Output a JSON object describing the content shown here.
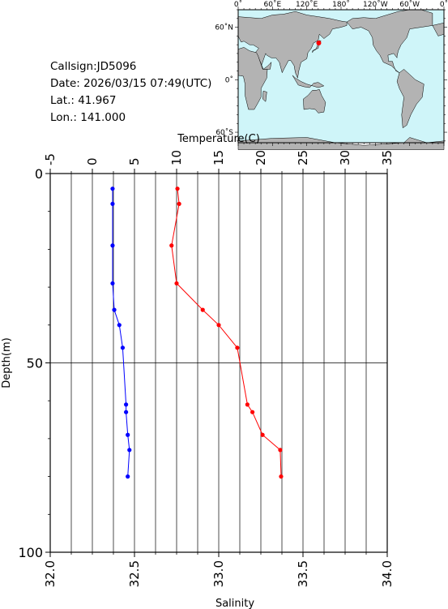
{
  "header": {
    "callsign": "Callsign:JD5096",
    "date": "Date:  2026/03/15 07:49(UTC)",
    "lat": "Lat.:  41.967",
    "lon": "Lon.:  141.000"
  },
  "map": {
    "top_labels": [
      "0˚",
      "60˚E",
      "120˚E",
      "180˚",
      "120˚W",
      "60˚W",
      "0˚"
    ],
    "left_labels": [
      "60˚N",
      "0˚",
      "60˚S"
    ],
    "ocean_color": "#cff5f9",
    "land_color": "#b3b3b3",
    "marker_color": "#ff0000",
    "station": {
      "lat": 41.967,
      "lon": 141.0
    }
  },
  "chart_data": {
    "type": "line",
    "ylabel": "Depth(m)",
    "y_axis_top": {
      "label": "Temperature(C)",
      "range": [
        -5,
        35
      ],
      "ticks": [
        "-5",
        "0",
        "5",
        "10",
        "15",
        "20",
        "25",
        "30",
        "35"
      ]
    },
    "x_axis_bottom": {
      "label": "Salinity",
      "range": [
        32.0,
        34.0
      ],
      "ticks": [
        "32.0",
        "32.5",
        "33.0",
        "33.5",
        "34.0"
      ]
    },
    "depth_axis": {
      "range": [
        0,
        100
      ],
      "ticks": [
        "0",
        "50",
        "100"
      ],
      "inverted": true
    },
    "grid": true,
    "series": [
      {
        "key": "temperature",
        "axis": "top",
        "color": "#ff0000",
        "points": [
          {
            "value": 10.1,
            "depth": 4
          },
          {
            "value": 10.3,
            "depth": 8
          },
          {
            "value": 9.4,
            "depth": 19
          },
          {
            "value": 10.0,
            "depth": 29
          },
          {
            "value": 13.1,
            "depth": 36
          },
          {
            "value": 15.0,
            "depth": 40
          },
          {
            "value": 17.2,
            "depth": 46
          },
          {
            "value": 18.4,
            "depth": 61
          },
          {
            "value": 19.0,
            "depth": 63
          },
          {
            "value": 20.2,
            "depth": 69
          },
          {
            "value": 22.3,
            "depth": 73
          },
          {
            "value": 22.4,
            "depth": 80
          }
        ]
      },
      {
        "key": "salinity",
        "axis": "bottom",
        "color": "#0000ff",
        "points": [
          {
            "value": 32.37,
            "depth": 4
          },
          {
            "value": 32.37,
            "depth": 8
          },
          {
            "value": 32.37,
            "depth": 19
          },
          {
            "value": 32.37,
            "depth": 29
          },
          {
            "value": 32.38,
            "depth": 36
          },
          {
            "value": 32.41,
            "depth": 40
          },
          {
            "value": 32.43,
            "depth": 46
          },
          {
            "value": 32.45,
            "depth": 61
          },
          {
            "value": 32.45,
            "depth": 63
          },
          {
            "value": 32.46,
            "depth": 69
          },
          {
            "value": 32.47,
            "depth": 73
          },
          {
            "value": 32.46,
            "depth": 80
          }
        ]
      }
    ]
  }
}
